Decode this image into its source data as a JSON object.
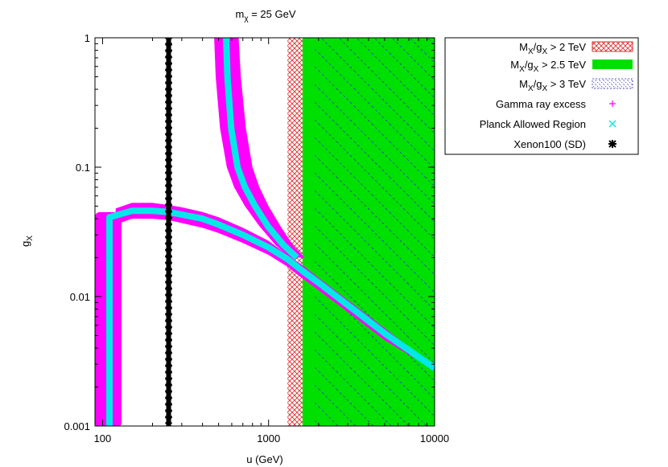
{
  "chart_data": {
    "type": "scatter",
    "title_main": "m",
    "title_sub": "χ",
    "title_rest": " = 25 GeV",
    "xlabel": "u (GeV)",
    "ylabel_main": "g",
    "ylabel_sub": "X",
    "xscale": "log",
    "yscale": "log",
    "xlim": [
      90,
      10000
    ],
    "ylim": [
      0.001,
      1
    ],
    "xticks": [
      {
        "value": 100,
        "label": "100"
      },
      {
        "value": 1000,
        "label": "1000"
      },
      {
        "value": 10000,
        "label": "10000"
      }
    ],
    "yticks": [
      {
        "value": 0.001,
        "label": "0.001"
      },
      {
        "value": 0.01,
        "label": "0.01"
      },
      {
        "value": 0.1,
        "label": "0.1"
      },
      {
        "value": 1,
        "label": "1"
      }
    ],
    "legend_position": "outside-top-right",
    "colors": {
      "excluded_2tev": "#e03030",
      "excluded_25tev": "#00e000",
      "excluded_3tev": "#3030c0",
      "gamma": "#ff00ff",
      "planck": "#00e8e8",
      "xenon": "#000000"
    },
    "regions": [
      {
        "name": "excluded_2tev",
        "x_from": 1300,
        "x_to": 10000,
        "style": "crosshatch"
      },
      {
        "name": "excluded_25tev",
        "x_from": 1600,
        "x_to": 10000,
        "style": "solid"
      },
      {
        "name": "excluded_3tev",
        "x_from": 1900,
        "x_to": 10000,
        "style": "diagonal"
      }
    ],
    "xenon_limit_u": 250,
    "series": [
      {
        "name": "gamma_lower_branch",
        "x": [
          110,
          120,
          150,
          200,
          250,
          300,
          400,
          500,
          700,
          1000,
          1300,
          1600,
          2000,
          3000,
          5000,
          10000
        ],
        "y_low": [
          0.001,
          0.036,
          0.04,
          0.04,
          0.039,
          0.037,
          0.034,
          0.031,
          0.026,
          0.021,
          0.017,
          0.0138,
          0.0112,
          0.0076,
          0.0046,
          0.0027
        ],
        "y_high": [
          0.001,
          0.048,
          0.053,
          0.053,
          0.051,
          0.049,
          0.045,
          0.041,
          0.034,
          0.027,
          0.021,
          0.0175,
          0.014,
          0.0094,
          0.0057,
          0.0029
        ]
      },
      {
        "name": "gamma_left_edge",
        "x_low": 90,
        "x_high": 130
      },
      {
        "name": "gamma_upper_branch",
        "y": [
          1,
          0.5,
          0.2,
          0.1,
          0.07,
          0.05,
          0.035,
          0.025,
          0.02
        ],
        "x_low": [
          470,
          480,
          510,
          560,
          620,
          720,
          880,
          1100,
          1350
        ],
        "x_high": [
          660,
          680,
          730,
          800,
          880,
          1000,
          1180,
          1400,
          1650
        ]
      },
      {
        "name": "planck_lower_branch",
        "x": [
          110,
          150,
          200,
          250,
          300,
          400,
          500,
          700,
          1000,
          1300,
          1600,
          2000,
          3000,
          5000,
          10000
        ],
        "y": [
          0.041,
          0.046,
          0.046,
          0.045,
          0.043,
          0.04,
          0.036,
          0.03,
          0.024,
          0.0195,
          0.0158,
          0.0128,
          0.0086,
          0.0052,
          0.0028
        ]
      },
      {
        "name": "planck_upper_branch",
        "y": [
          1,
          0.5,
          0.2,
          0.1,
          0.07,
          0.05,
          0.035,
          0.025,
          0.02
        ],
        "x": [
          555,
          565,
          595,
          650,
          720,
          830,
          990,
          1230,
          1480
        ]
      }
    ]
  },
  "legend": [
    {
      "main": "M",
      "sub1": "X",
      "mid": "/g",
      "sub2": "X",
      "rest": " > 2 TeV",
      "style": "crosshatch",
      "color": "#e03030"
    },
    {
      "main": "M",
      "sub1": "X",
      "mid": "/g",
      "sub2": "X",
      "rest": " > 2.5 TeV",
      "style": "solid",
      "color": "#00e000"
    },
    {
      "main": "M",
      "sub1": "X",
      "mid": "/g",
      "sub2": "X",
      "rest": " > 3 TeV",
      "style": "diagonal",
      "color": "#3030c0"
    },
    {
      "text": "Gamma ray excess",
      "style": "plus",
      "color": "#ff00ff"
    },
    {
      "text": "Planck Allowed Region",
      "style": "cross",
      "color": "#00e8e8"
    },
    {
      "text": "Xenon100 (SD)",
      "style": "star",
      "color": "#000000"
    }
  ]
}
